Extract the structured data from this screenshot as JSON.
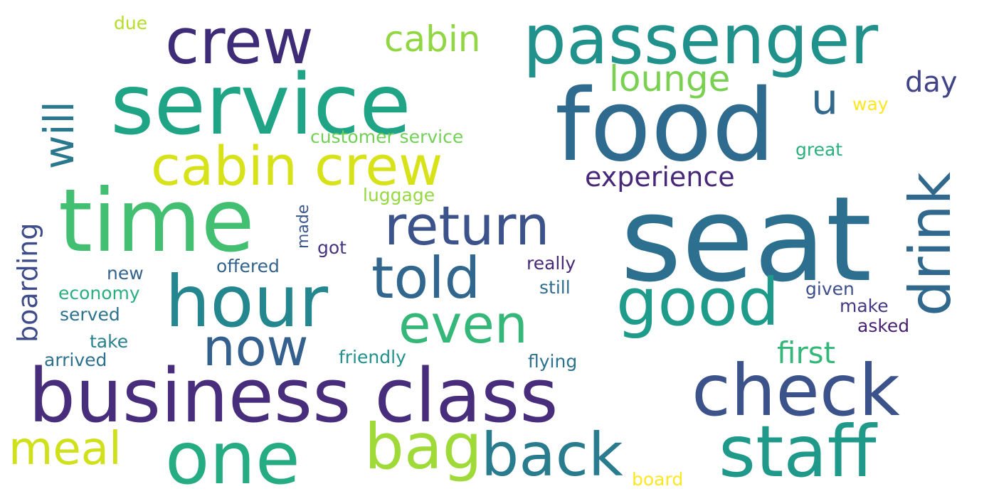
{
  "words": [
    {
      "text": "seat",
      "color": "#2d6f8e"
    },
    {
      "text": "food",
      "color": "#2f6b8e"
    },
    {
      "text": "service",
      "color": "#20a486"
    },
    {
      "text": "time",
      "color": "#43bf71"
    },
    {
      "text": "business class",
      "color": "#472d7b"
    },
    {
      "text": "passenger",
      "color": "#21918c"
    },
    {
      "text": "crew",
      "color": "#3f2c78"
    },
    {
      "text": "hour",
      "color": "#24868e"
    },
    {
      "text": "one",
      "color": "#25ac82"
    },
    {
      "text": "check",
      "color": "#3b528b"
    },
    {
      "text": "staff",
      "color": "#1f9a8a"
    },
    {
      "text": "cabin crew",
      "color": "#d8e219"
    },
    {
      "text": "good",
      "color": "#1e9b8a"
    },
    {
      "text": "back",
      "color": "#287c8e"
    },
    {
      "text": "return",
      "color": "#3b528b"
    },
    {
      "text": "told",
      "color": "#31668e"
    },
    {
      "text": "drink",
      "color": "#31688e"
    },
    {
      "text": "bag",
      "color": "#a0da39"
    },
    {
      "text": "now",
      "color": "#34608d"
    },
    {
      "text": "even",
      "color": "#35b779"
    },
    {
      "text": "meal",
      "color": "#d0e11c"
    },
    {
      "text": "will",
      "color": "#2a788e"
    },
    {
      "text": "lounge",
      "color": "#7ad151"
    },
    {
      "text": "cabin",
      "color": "#90d743"
    },
    {
      "text": "u",
      "color": "#31688e"
    },
    {
      "text": "experience",
      "color": "#482878"
    },
    {
      "text": "first",
      "color": "#35b779"
    },
    {
      "text": "day",
      "color": "#414487"
    },
    {
      "text": "boarding",
      "color": "#3e4c8a"
    },
    {
      "text": "customer service",
      "color": "#73d056"
    },
    {
      "text": "luggage",
      "color": "#95d840"
    },
    {
      "text": "made",
      "color": "#39568c"
    },
    {
      "text": "got",
      "color": "#46337f"
    },
    {
      "text": "offered",
      "color": "#33638d"
    },
    {
      "text": "new",
      "color": "#33638d"
    },
    {
      "text": "economy",
      "color": "#29af7f"
    },
    {
      "text": "served",
      "color": "#2c728e"
    },
    {
      "text": "take",
      "color": "#26818e"
    },
    {
      "text": "arrived",
      "color": "#2d708e"
    },
    {
      "text": "friendly",
      "color": "#21918c"
    },
    {
      "text": "flying",
      "color": "#2c728e"
    },
    {
      "text": "really",
      "color": "#482878"
    },
    {
      "text": "still",
      "color": "#2f6c8e"
    },
    {
      "text": "given",
      "color": "#3d4e8a"
    },
    {
      "text": "make",
      "color": "#443983"
    },
    {
      "text": "asked",
      "color": "#481f70"
    },
    {
      "text": "great",
      "color": "#2ab07f"
    },
    {
      "text": "way",
      "color": "#fde725"
    },
    {
      "text": "due",
      "color": "#b5de2b"
    },
    {
      "text": "board",
      "color": "#fde725"
    }
  ]
}
